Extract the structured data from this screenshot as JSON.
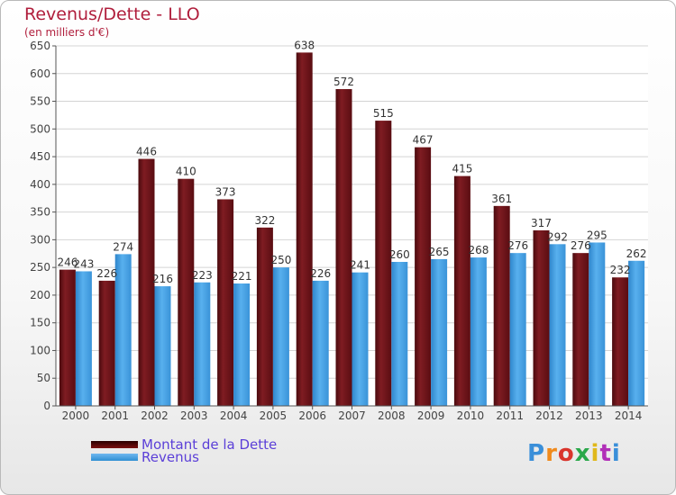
{
  "header": {
    "title": "Revenus/Dette - LLO",
    "subtitle": "(en milliers d'€)"
  },
  "logo": {
    "text": "Proxiti",
    "colors": [
      "#3a8fd9",
      "#f08a1c",
      "#d9342b",
      "#2aa84a",
      "#e0b81b",
      "#b12fb8",
      "#3a8fd9"
    ]
  },
  "chart_data": {
    "type": "bar",
    "categories": [
      "2000",
      "2001",
      "2002",
      "2003",
      "2004",
      "2005",
      "2006",
      "2007",
      "2008",
      "2009",
      "2010",
      "2011",
      "2012",
      "2013",
      "2014"
    ],
    "series": [
      {
        "name": "Montant de la Dette",
        "color": "#7b1a1f",
        "values": [
          246,
          226,
          446,
          410,
          373,
          322,
          638,
          572,
          515,
          467,
          415,
          361,
          317,
          276,
          232
        ]
      },
      {
        "name": "Revenus",
        "color": "#3f9fe2",
        "values": [
          243,
          274,
          216,
          223,
          221,
          250,
          226,
          241,
          260,
          265,
          268,
          276,
          292,
          295,
          262
        ]
      }
    ],
    "ylim": [
      0,
      650
    ],
    "yticks": [
      0,
      50,
      100,
      150,
      200,
      250,
      300,
      350,
      400,
      450,
      500,
      550,
      600,
      650
    ],
    "grid": true,
    "legend_position": "bottom-left"
  }
}
